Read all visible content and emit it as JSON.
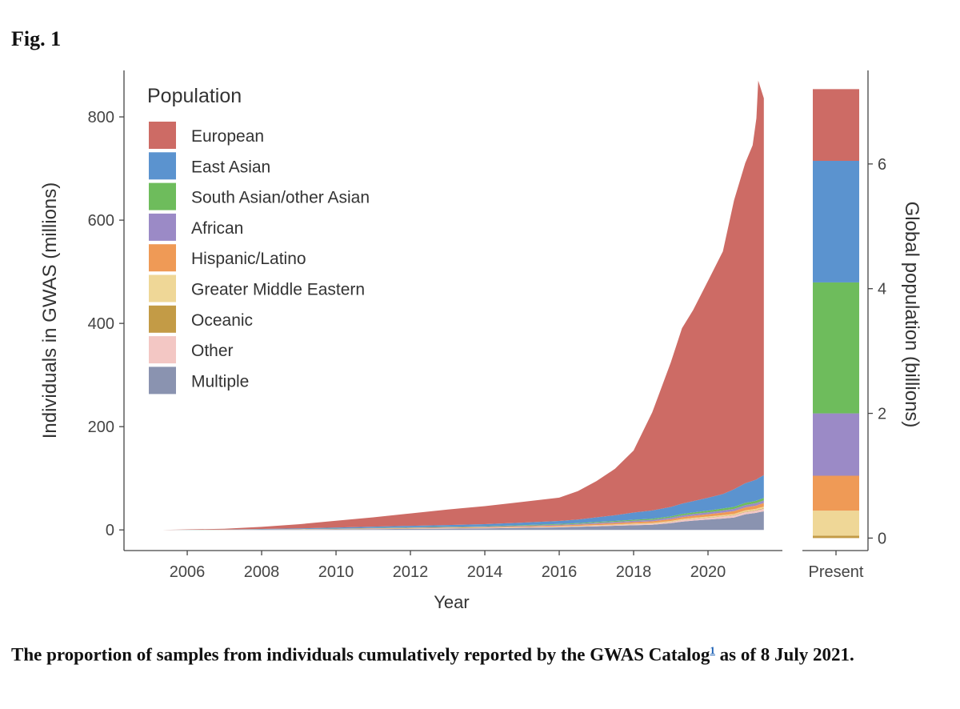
{
  "figure": {
    "label": "Fig. 1",
    "caption_before": "The proportion of samples from individuals cumulatively reported by the GWAS Catalog",
    "caption_ref": "1",
    "caption_after": " as of 8 July 2021."
  },
  "chart_data": [
    {
      "type": "area",
      "stacked": true,
      "xlabel": "Year",
      "ylabel": "Individuals in GWAS (millions)",
      "xlim": [
        2004.3,
        2022.0
      ],
      "ylim": [
        -40,
        890
      ],
      "xticks": [
        2006,
        2008,
        2010,
        2012,
        2014,
        2016,
        2018,
        2020
      ],
      "yticks": [
        0,
        200,
        400,
        600,
        800
      ],
      "legend": {
        "title": "Population",
        "position": "top-left"
      },
      "x": [
        2005.3,
        2007.0,
        2008.0,
        2009.0,
        2010.0,
        2011.0,
        2012.0,
        2013.0,
        2014.0,
        2015.0,
        2016.0,
        2016.5,
        2017.0,
        2017.5,
        2018.0,
        2018.5,
        2019.0,
        2019.3,
        2019.6,
        2020.0,
        2020.4,
        2020.7,
        2021.0,
        2021.2,
        2021.3,
        2021.35,
        2021.5
      ],
      "series": [
        {
          "name": "Multiple",
          "color": "#8a93b0",
          "values": [
            0,
            0.1,
            0.3,
            0.5,
            1,
            1.5,
            2,
            2.5,
            3,
            4,
            5,
            6,
            7,
            8,
            9,
            10,
            13,
            16,
            18,
            20,
            22,
            24,
            30,
            32,
            33,
            34,
            36
          ]
        },
        {
          "name": "Other",
          "color": "#f3c7c4",
          "values": [
            0,
            0.05,
            0.1,
            0.2,
            0.3,
            0.4,
            0.5,
            0.6,
            0.7,
            0.8,
            1,
            1.1,
            1.3,
            1.5,
            1.8,
            2,
            2.5,
            3,
            3.2,
            3.5,
            4,
            4.2,
            4.5,
            4.6,
            4.7,
            4.8,
            5
          ]
        },
        {
          "name": "Oceanic",
          "color": "#c39b46",
          "values": [
            0,
            0,
            0,
            0,
            0,
            0.1,
            0.1,
            0.1,
            0.1,
            0.2,
            0.2,
            0.2,
            0.3,
            0.3,
            0.4,
            0.4,
            0.5,
            0.5,
            0.6,
            0.6,
            0.7,
            0.7,
            0.8,
            0.8,
            0.8,
            0.9,
            1
          ]
        },
        {
          "name": "Greater Middle Eastern",
          "color": "#efd797",
          "values": [
            0,
            0,
            0.05,
            0.1,
            0.1,
            0.2,
            0.2,
            0.3,
            0.3,
            0.4,
            0.5,
            0.6,
            0.7,
            0.8,
            1,
            1.1,
            1.3,
            1.5,
            1.6,
            1.8,
            2,
            2.1,
            2.3,
            2.4,
            2.5,
            2.6,
            3
          ]
        },
        {
          "name": "Hispanic/Latino",
          "color": "#ef9a56",
          "values": [
            0,
            0.1,
            0.2,
            0.3,
            0.5,
            0.7,
            0.9,
            1,
            1.2,
            1.5,
            2,
            2.2,
            2.5,
            2.8,
            3,
            3.3,
            3.6,
            3.8,
            4,
            4.5,
            5,
            5.5,
            6,
            6.2,
            6.3,
            6.4,
            7
          ]
        },
        {
          "name": "African",
          "color": "#9b8ac6",
          "values": [
            0,
            0.1,
            0.2,
            0.3,
            0.4,
            0.5,
            0.6,
            0.8,
            1,
            1.2,
            1.5,
            1.7,
            2,
            2.2,
            2.5,
            2.7,
            3,
            3.2,
            3.4,
            3.6,
            4,
            4.2,
            4.5,
            4.6,
            4.7,
            4.8,
            5
          ]
        },
        {
          "name": "South Asian/other Asian",
          "color": "#6ebc5c",
          "values": [
            0,
            0.1,
            0.2,
            0.3,
            0.4,
            0.5,
            0.6,
            0.7,
            0.8,
            1,
            1.2,
            1.4,
            1.6,
            1.8,
            2,
            2.2,
            2.5,
            2.8,
            3,
            3.3,
            3.8,
            4,
            4.3,
            4.4,
            4.5,
            4.6,
            5
          ]
        },
        {
          "name": "East Asian",
          "color": "#5b93cf",
          "values": [
            0,
            0.3,
            0.8,
            1.3,
            2,
            2.5,
            3,
            3.5,
            4,
            5,
            6,
            7,
            9,
            11,
            14,
            16,
            18,
            20,
            22,
            25,
            28,
            34,
            38,
            40,
            41,
            42,
            44
          ]
        },
        {
          "name": "European",
          "color": "#cd6b65",
          "values": [
            0,
            1.5,
            4,
            8,
            13,
            18,
            24,
            30,
            35,
            40,
            45,
            55,
            70,
            90,
            120,
            190,
            280,
            340,
            370,
            420,
            470,
            560,
            620,
            650,
            700,
            770,
            730
          ]
        }
      ]
    },
    {
      "type": "bar",
      "stacked": true,
      "categories": [
        "Present"
      ],
      "ylabel": "Global population (billions)",
      "ylim": [
        -0.2,
        7.5
      ],
      "yticks": [
        0,
        2,
        4,
        6
      ],
      "series": [
        {
          "name": "Oceanic",
          "color": "#c39b46",
          "values": [
            0.04
          ]
        },
        {
          "name": "Greater Middle Eastern",
          "color": "#efd797",
          "values": [
            0.4
          ]
        },
        {
          "name": "Hispanic/Latino",
          "color": "#ef9a56",
          "values": [
            0.56
          ]
        },
        {
          "name": "African",
          "color": "#9b8ac6",
          "values": [
            1.0
          ]
        },
        {
          "name": "South Asian/other Asian",
          "color": "#6ebc5c",
          "values": [
            2.1
          ]
        },
        {
          "name": "East Asian",
          "color": "#5b93cf",
          "values": [
            1.95
          ]
        },
        {
          "name": "European",
          "color": "#cd6b65",
          "values": [
            1.15
          ]
        }
      ]
    }
  ]
}
